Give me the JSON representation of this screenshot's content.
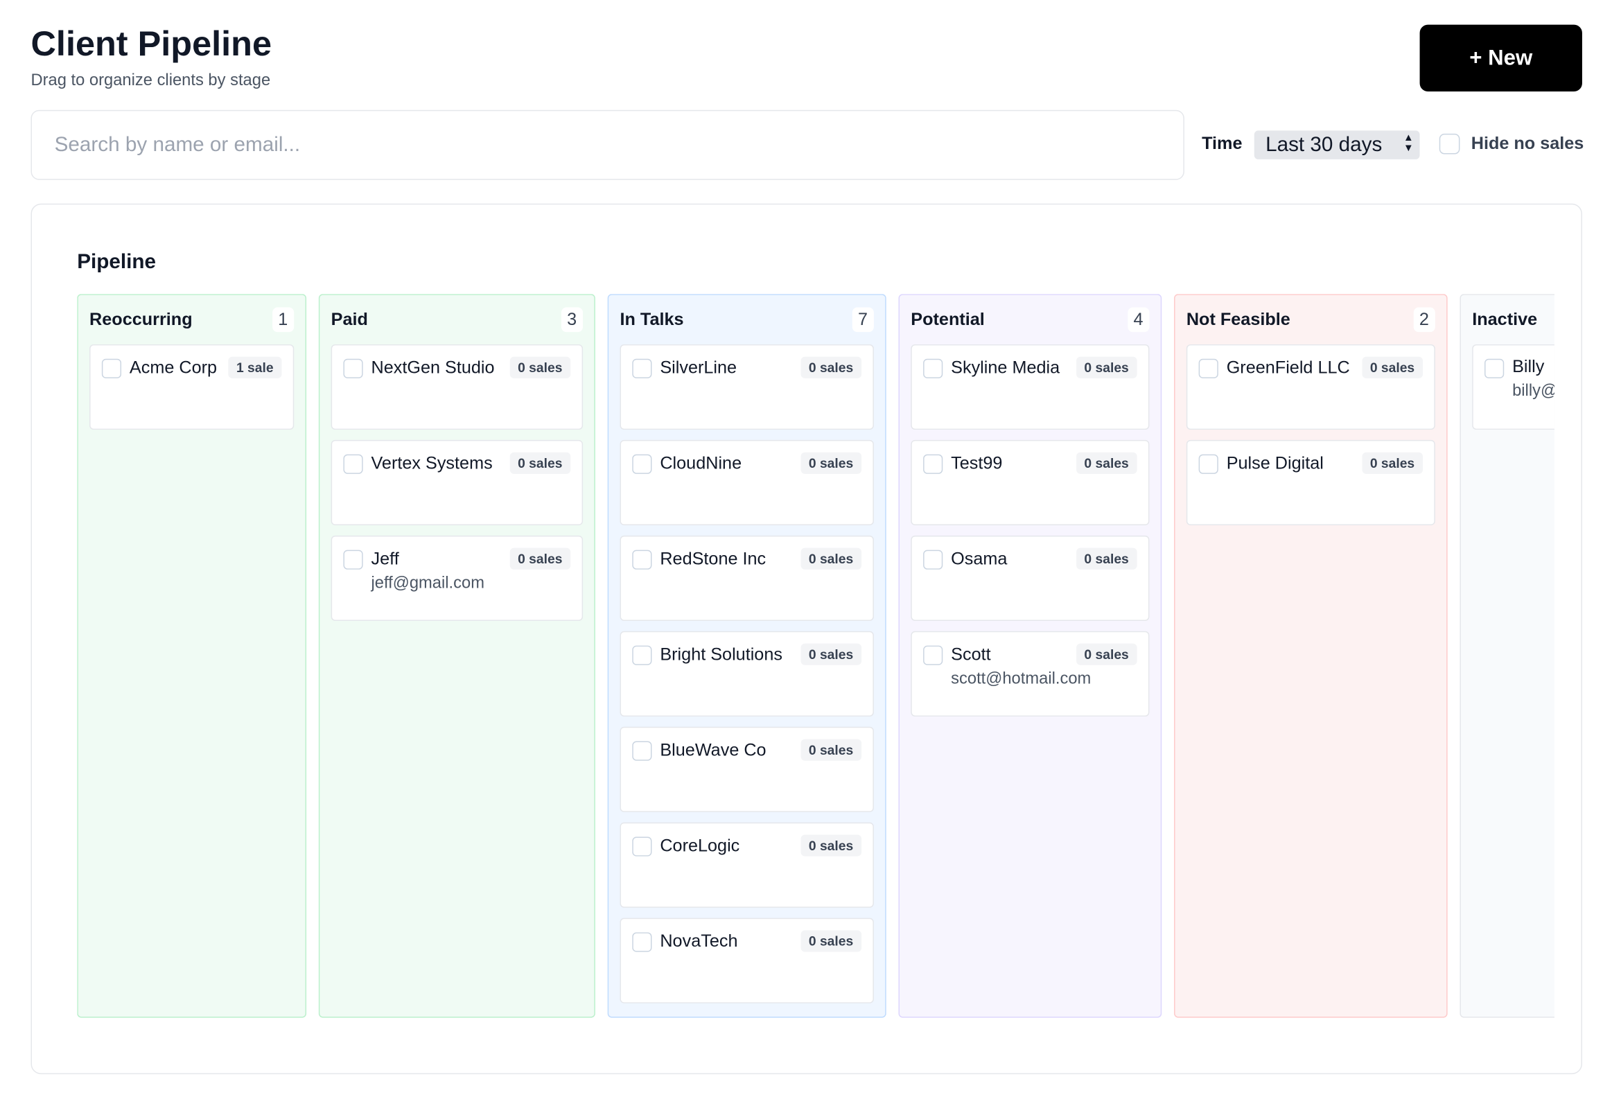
{
  "header": {
    "title": "Client Pipeline",
    "subtitle": "Drag to organize clients by stage",
    "new_button": "+ New"
  },
  "search": {
    "placeholder": "Search by name or email..."
  },
  "filters": {
    "time_label": "Time",
    "time_value": "Last 30 days",
    "hide_label": "Hide no sales"
  },
  "board": {
    "title": "Pipeline",
    "columns": [
      {
        "title": "Reoccurring",
        "count": 1,
        "cards": [
          {
            "name": "Acme Corp",
            "badge": "1 sale"
          }
        ]
      },
      {
        "title": "Paid",
        "count": 3,
        "cards": [
          {
            "name": "NextGen Studio",
            "badge": "0 sales"
          },
          {
            "name": "Vertex Systems",
            "badge": "0 sales"
          },
          {
            "name": "Jeff",
            "badge": "0 sales",
            "email": "jeff@gmail.com"
          }
        ]
      },
      {
        "title": "In Talks",
        "count": 7,
        "cards": [
          {
            "name": "SilverLine",
            "badge": "0 sales"
          },
          {
            "name": "CloudNine",
            "badge": "0 sales"
          },
          {
            "name": "RedStone Inc",
            "badge": "0 sales"
          },
          {
            "name": "Bright Solutions",
            "badge": "0 sales"
          },
          {
            "name": "BlueWave Co",
            "badge": "0 sales"
          },
          {
            "name": "CoreLogic",
            "badge": "0 sales"
          },
          {
            "name": "NovaTech",
            "badge": "0 sales"
          }
        ]
      },
      {
        "title": "Potential",
        "count": 4,
        "cards": [
          {
            "name": "Skyline Media",
            "badge": "0 sales"
          },
          {
            "name": "Test99",
            "badge": "0 sales"
          },
          {
            "name": "Osama",
            "badge": "0 sales"
          },
          {
            "name": "Scott",
            "badge": "0 sales",
            "email": "scott@hotmail.com"
          }
        ]
      },
      {
        "title": "Not Feasible",
        "count": 2,
        "cards": [
          {
            "name": "GreenField LLC",
            "badge": "0 sales"
          },
          {
            "name": "Pulse Digital",
            "badge": "0 sales"
          }
        ]
      },
      {
        "title": "Inactive",
        "cards": [
          {
            "name": "Billy",
            "email": "billy@"
          }
        ]
      }
    ]
  }
}
